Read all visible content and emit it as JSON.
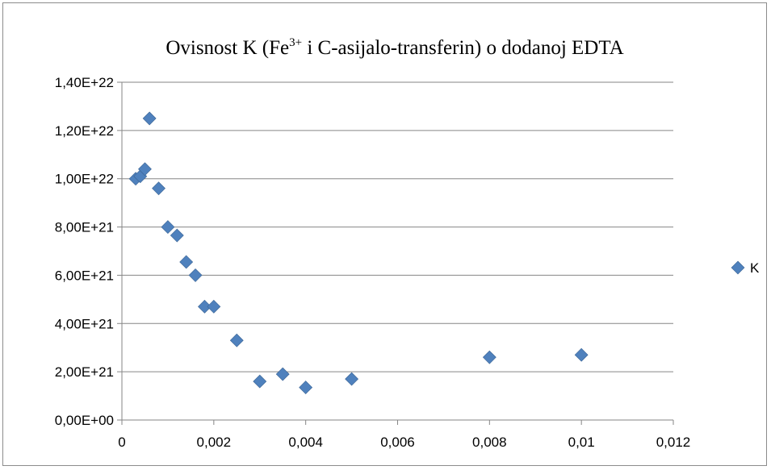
{
  "chart_data": {
    "type": "scatter",
    "title": {
      "prefix": "Ovisnost K (Fe",
      "superscript": "3+",
      "suffix": " i C-asijalo-transferin) o dodanoj EDTA"
    },
    "xlabel": "",
    "ylabel": "",
    "xlim": [
      0,
      0.012
    ],
    "ylim": [
      0,
      1.4e+22
    ],
    "x_ticks": [
      0,
      0.002,
      0.004,
      0.006,
      0.008,
      0.01,
      0.012
    ],
    "x_tick_labels": [
      "0",
      "0,002",
      "0,004",
      "0,006",
      "0,008",
      "0,01",
      "0,012"
    ],
    "y_ticks": [
      0,
      2e+21,
      4e+21,
      6e+21,
      8e+21,
      1e+22,
      1.2e+22,
      1.4e+22
    ],
    "y_tick_labels": [
      "0,00E+00",
      "2,00E+21",
      "4,00E+21",
      "6,00E+21",
      "8,00E+21",
      "1,00E+22",
      "1,20E+22",
      "1,40E+22"
    ],
    "grid": "horizontal",
    "legend_position": "right",
    "series": [
      {
        "name": "K",
        "color": "#4f81bd",
        "marker": "diamond",
        "points": [
          [
            0.0003,
            1e+22
          ],
          [
            0.0004,
            1.01e+22
          ],
          [
            0.0005,
            1.04e+22
          ],
          [
            0.0006,
            1.25e+22
          ],
          [
            0.0008,
            9.6e+21
          ],
          [
            0.001,
            8e+21
          ],
          [
            0.0012,
            7.65e+21
          ],
          [
            0.0014,
            6.55e+21
          ],
          [
            0.0016,
            6e+21
          ],
          [
            0.0018,
            4.7e+21
          ],
          [
            0.002,
            4.7e+21
          ],
          [
            0.0025,
            3.3e+21
          ],
          [
            0.003,
            1.6e+21
          ],
          [
            0.0035,
            1.9e+21
          ],
          [
            0.004,
            1.35e+21
          ],
          [
            0.005,
            1.7e+21
          ],
          [
            0.008,
            2.6e+21
          ],
          [
            0.01,
            2.7e+21
          ]
        ]
      }
    ]
  }
}
